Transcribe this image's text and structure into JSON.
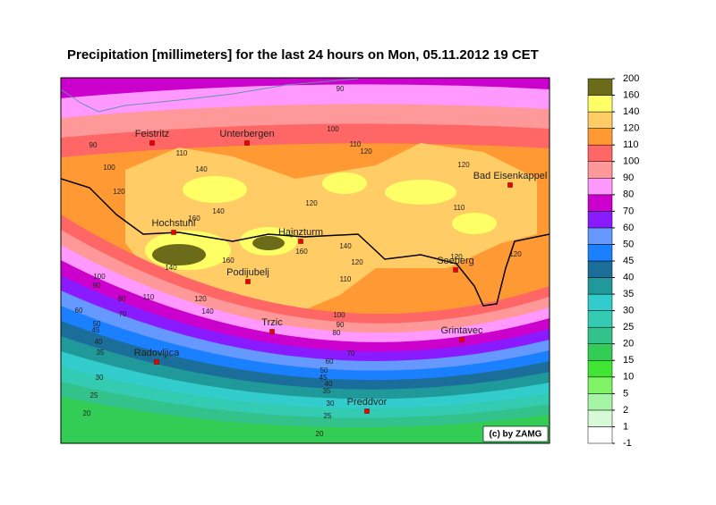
{
  "title": "Precipitation [millimeters] for the last 24 hours on Mon, 05.11.2012 19 CET",
  "copyright": "(c) by ZAMG",
  "colorbar": {
    "levels": [
      -1,
      1,
      2,
      5,
      10,
      15,
      20,
      25,
      30,
      35,
      40,
      45,
      50,
      60,
      70,
      80,
      90,
      100,
      110,
      120,
      140,
      160,
      200
    ],
    "colors": [
      "#ffffff",
      "#d6fad6",
      "#a6f5a6",
      "#80f266",
      "#40e633",
      "#33cc55",
      "#33c28c",
      "#33ccb3",
      "#33cccc",
      "#1f9999",
      "#1a6e99",
      "#1a80ff",
      "#6699ff",
      "#8a1aff",
      "#cc00cc",
      "#ff99ff",
      "#ff9999",
      "#ff6666",
      "#ff9933",
      "#ffcc66",
      "#ffff66",
      "#cccc1a"
    ]
  },
  "places": [
    "Feistritz",
    "Unterbergen",
    "Bad Eisenkappel",
    "Hochstuhl",
    "Hajnzturm",
    "Podijubelj",
    "Seeberg",
    "Trzic",
    "Grintavec",
    "Radovljica",
    "Preddvor"
  ],
  "contour_labels": [
    90,
    100,
    110,
    120,
    90,
    100,
    110,
    140,
    120,
    160,
    140,
    120,
    110,
    120,
    160,
    140,
    120,
    110,
    160,
    140,
    120,
    140,
    110,
    100,
    90,
    80,
    70,
    60,
    50,
    45,
    40,
    35,
    30,
    25,
    20,
    100,
    90,
    80,
    70,
    60,
    50,
    45,
    40,
    35,
    30,
    25,
    20,
    120,
    120
  ]
}
